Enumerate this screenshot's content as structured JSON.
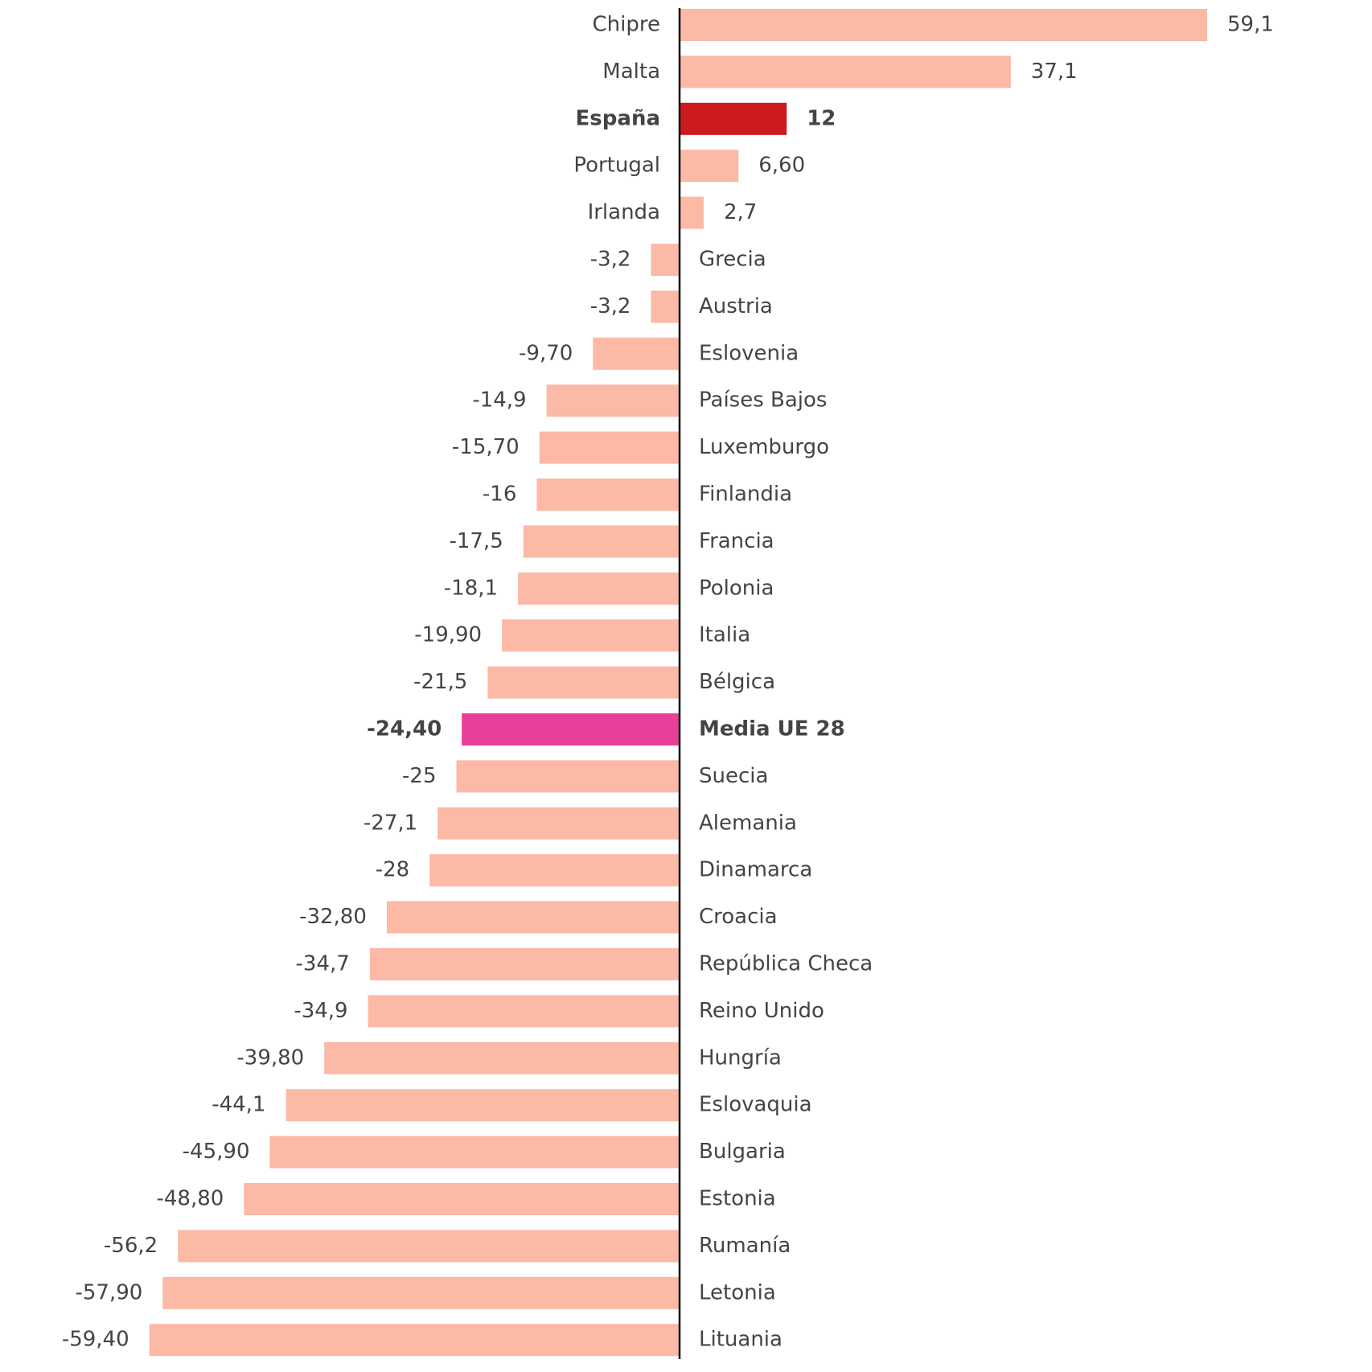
{
  "chart_data": {
    "type": "bar",
    "orientation": "horizontal",
    "categories": [
      "Chipre",
      "Malta",
      "España",
      "Portugal",
      "Irlanda",
      "Grecia",
      "Austria",
      "Eslovenia",
      "Países Bajos",
      "Luxemburgo",
      "Finlandia",
      "Francia",
      "Polonia",
      "Italia",
      "Bélgica",
      "Media UE 28",
      "Suecia",
      "Alemania",
      "Dinamarca",
      "Croacia",
      "República Checa",
      "Reino Unido",
      "Hungría",
      "Eslovaquia",
      "Bulgaria",
      "Estonia",
      "Rumanía",
      "Letonia",
      "Lituania"
    ],
    "values": [
      59.1,
      37.1,
      12,
      6.6,
      2.7,
      -3.2,
      -3.2,
      -9.7,
      -14.9,
      -15.7,
      -16,
      -17.5,
      -18.1,
      -19.9,
      -21.5,
      -24.4,
      -25,
      -27.1,
      -28,
      -32.8,
      -34.7,
      -34.9,
      -39.8,
      -44.1,
      -45.9,
      -48.8,
      -56.2,
      -57.9,
      -59.4
    ],
    "value_labels": [
      "59,1",
      "37,1",
      "12",
      "6,60",
      "2,7",
      "-3,2",
      "-3,2",
      "-9,70",
      "-14,9",
      "-15,70",
      "-16",
      "-17,5",
      "-18,1",
      "-19,90",
      "-21,5",
      "-24,40",
      "-25",
      "-27,1",
      "-28",
      "-32,80",
      "-34,7",
      "-34,9",
      "-39,80",
      "-44,1",
      "-45,90",
      "-48,80",
      "-56,2",
      "-57,90",
      "-59,40"
    ],
    "colors": [
      "#fbb9a6",
      "#fbb9a6",
      "#cc1a1e",
      "#fbb9a6",
      "#fbb9a6",
      "#fbb9a6",
      "#fbb9a6",
      "#fbb9a6",
      "#fbb9a6",
      "#fbb9a6",
      "#fbb9a6",
      "#fbb9a6",
      "#fbb9a6",
      "#fbb9a6",
      "#fbb9a6",
      "#e8409a",
      "#fbb9a6",
      "#fbb9a6",
      "#fbb9a6",
      "#fbb9a6",
      "#fbb9a6",
      "#fbb9a6",
      "#fbb9a6",
      "#fbb9a6",
      "#fbb9a6",
      "#fbb9a6",
      "#fbb9a6",
      "#fbb9a6",
      "#fbb9a6"
    ],
    "bold": [
      false,
      false,
      true,
      false,
      false,
      false,
      false,
      false,
      false,
      false,
      false,
      false,
      false,
      false,
      false,
      true,
      false,
      false,
      false,
      false,
      false,
      false,
      false,
      false,
      false,
      false,
      false,
      false,
      false
    ],
    "xlim": [
      -60,
      60
    ]
  }
}
